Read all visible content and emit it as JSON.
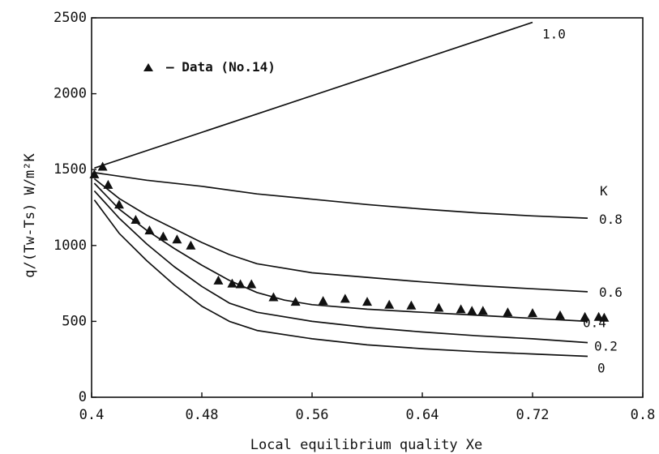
{
  "chart_data": {
    "type": "line",
    "title": "",
    "xlabel": "Local equilibrium quality Xe",
    "ylabel": "q/(Tw-Ts) W/m²K",
    "xlim": [
      0.4,
      0.8
    ],
    "ylim": [
      0,
      2500
    ],
    "xticks": [
      0.4,
      0.48,
      0.56,
      0.64,
      0.72,
      0.8
    ],
    "xtick_labels": [
      "0.4",
      "0.48",
      "0.56",
      "0.64",
      "0.72",
      "0.8"
    ],
    "yticks": [
      0,
      500,
      1000,
      1500,
      2000,
      2500
    ],
    "ytick_labels": [
      "0",
      "500",
      "1000",
      "1500",
      "2000",
      "2500"
    ],
    "grid": false,
    "curve_group_label": "K",
    "series": [
      {
        "name": "1.0",
        "x": [
          0.402,
          0.72
        ],
        "y": [
          1510,
          2470
        ]
      },
      {
        "name": "0.8",
        "x": [
          0.402,
          0.44,
          0.48,
          0.52,
          0.56,
          0.6,
          0.64,
          0.68,
          0.72,
          0.76
        ],
        "y": [
          1480,
          1430,
          1390,
          1340,
          1305,
          1270,
          1240,
          1215,
          1195,
          1180
        ]
      },
      {
        "name": "0.6",
        "x": [
          0.402,
          0.42,
          0.44,
          0.46,
          0.48,
          0.5,
          0.52,
          0.56,
          0.6,
          0.64,
          0.68,
          0.72,
          0.76
        ],
        "y": [
          1440,
          1310,
          1200,
          1110,
          1020,
          940,
          880,
          820,
          790,
          760,
          735,
          715,
          695
        ]
      },
      {
        "name": "0.4",
        "x": [
          0.402,
          0.42,
          0.44,
          0.46,
          0.48,
          0.5,
          0.52,
          0.54,
          0.56,
          0.6,
          0.64,
          0.68,
          0.72,
          0.76
        ],
        "y": [
          1410,
          1240,
          1100,
          980,
          870,
          770,
          690,
          640,
          610,
          580,
          560,
          540,
          520,
          500
        ]
      },
      {
        "name": "0.2",
        "x": [
          0.402,
          0.42,
          0.44,
          0.46,
          0.48,
          0.5,
          0.52,
          0.56,
          0.6,
          0.64,
          0.68,
          0.72,
          0.76
        ],
        "y": [
          1360,
          1180,
          1010,
          860,
          730,
          620,
          560,
          500,
          460,
          430,
          405,
          385,
          360
        ]
      },
      {
        "name": "0",
        "x": [
          0.402,
          0.42,
          0.44,
          0.46,
          0.48,
          0.5,
          0.52,
          0.56,
          0.6,
          0.64,
          0.68,
          0.72,
          0.76
        ],
        "y": [
          1300,
          1080,
          900,
          740,
          600,
          500,
          440,
          385,
          345,
          320,
          300,
          285,
          270
        ]
      }
    ],
    "scatter": {
      "name": "Data (No.14)",
      "legend_label": "– Data (No.14)",
      "x": [
        0.402,
        0.408,
        0.412,
        0.42,
        0.432,
        0.442,
        0.452,
        0.462,
        0.472,
        0.492,
        0.502,
        0.508,
        0.516,
        0.532,
        0.548,
        0.568,
        0.584,
        0.6,
        0.616,
        0.632,
        0.652,
        0.668,
        0.676,
        0.684,
        0.702,
        0.72,
        0.74,
        0.758,
        0.768,
        0.772
      ],
      "y": [
        1470,
        1520,
        1400,
        1270,
        1170,
        1100,
        1060,
        1040,
        1000,
        770,
        750,
        745,
        745,
        660,
        630,
        635,
        650,
        630,
        610,
        605,
        590,
        580,
        570,
        570,
        560,
        555,
        540,
        530,
        530,
        525
      ]
    },
    "legend_position": "top-left"
  }
}
